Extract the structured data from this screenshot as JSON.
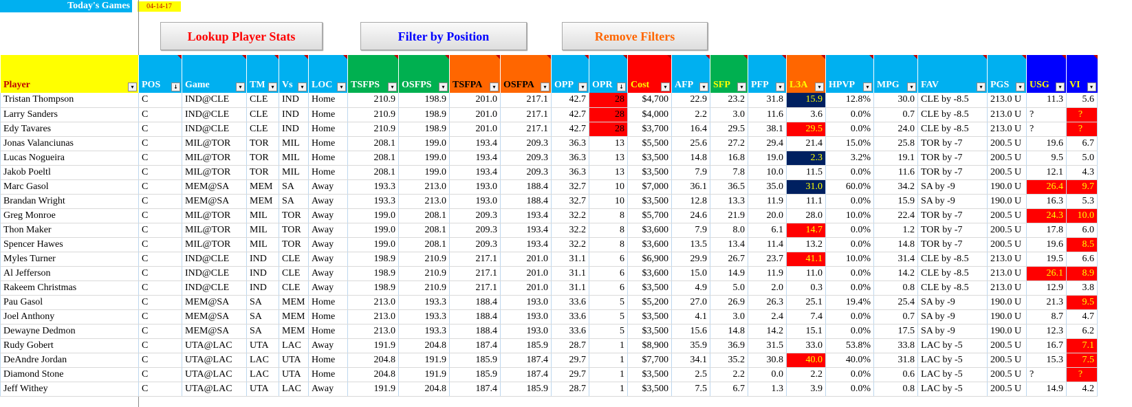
{
  "header": {
    "title": "Today's Games",
    "date": "04-14-17"
  },
  "toolbar": {
    "lookup_label": "Lookup Player Stats",
    "filter_label": "Filter by Position",
    "remove_label": "Remove Filters"
  },
  "colors": {
    "accent_blue": "#00b0f0",
    "yellow": "#ffff00",
    "green": "#00b050",
    "orange": "#ff6600",
    "red": "#ff0000",
    "navy": "#002060",
    "blue": "#0000ff"
  },
  "table": {
    "columns": [
      {
        "label": "Player",
        "bg": "#ffff00",
        "fg": "#c00000",
        "dd": "▾"
      },
      {
        "label": "POS",
        "bg": "#00b0f0",
        "fg": "#ffffff",
        "dd": "↓"
      },
      {
        "label": "Game",
        "bg": "#00b0f0",
        "fg": "#ffffff",
        "dd": "▾"
      },
      {
        "label": "TM",
        "bg": "#00b0f0",
        "fg": "#ffffff",
        "dd": "▾"
      },
      {
        "label": "Vs",
        "bg": "#00b0f0",
        "fg": "#ffffff",
        "dd": "▾"
      },
      {
        "label": "LOC",
        "bg": "#00b0f0",
        "fg": "#ffffff",
        "dd": "▾"
      },
      {
        "label": "TSFPS",
        "bg": "#00b050",
        "fg": "#ffffff",
        "dd": "▾"
      },
      {
        "label": "OSFPS",
        "bg": "#00b050",
        "fg": "#ffffff",
        "dd": "▾"
      },
      {
        "label": "TSFPA",
        "bg": "#ff6600",
        "fg": "#000000",
        "dd": "▾"
      },
      {
        "label": "OSFPA",
        "bg": "#ff6600",
        "fg": "#000000",
        "dd": "▾"
      },
      {
        "label": "OPP",
        "bg": "#00b0f0",
        "fg": "#ffffff",
        "dd": "▾"
      },
      {
        "label": "OPR",
        "bg": "#00b0f0",
        "fg": "#ffffff",
        "dd": "↓"
      },
      {
        "label": "Cost",
        "bg": "#ff0000",
        "fg": "#ffff00",
        "dd": "▾"
      },
      {
        "label": "AFP",
        "bg": "#00b0f0",
        "fg": "#ffffff",
        "dd": "▾"
      },
      {
        "label": "SFP",
        "bg": "#00b050",
        "fg": "#ffff00",
        "dd": "▾"
      },
      {
        "label": "PFP",
        "bg": "#00b0f0",
        "fg": "#ffffff",
        "dd": "▾"
      },
      {
        "label": "L3A",
        "bg": "#ff6600",
        "fg": "#ffff00",
        "dd": "▾"
      },
      {
        "label": "HPVP",
        "bg": "#00b0f0",
        "fg": "#ffffff",
        "dd": "▾"
      },
      {
        "label": "MPG",
        "bg": "#00b0f0",
        "fg": "#ffffff",
        "dd": "▾"
      },
      {
        "label": "FAV",
        "bg": "#00b0f0",
        "fg": "#ffffff",
        "dd": "▾"
      },
      {
        "label": "PGS",
        "bg": "#00b0f0",
        "fg": "#ffffff",
        "dd": "▾"
      },
      {
        "label": "USG",
        "bg": "#0000ff",
        "fg": "#ffff00",
        "dd": "▾"
      },
      {
        "label": "VI",
        "bg": "#0000ff",
        "fg": "#ffff00",
        "dd": "▾"
      }
    ],
    "rows": [
      [
        "Tristan Thompson",
        "C",
        "IND@CLE",
        "CLE",
        "IND",
        "Home",
        "210.9",
        "198.9",
        "201.0",
        "217.1",
        "42.7",
        "28",
        "$4,700",
        "22.9",
        "23.2",
        "31.8",
        "15.9",
        "12.8%",
        "30.0",
        "CLE by -8.5",
        "213.0 U",
        "11.3",
        "5.6"
      ],
      [
        "Larry Sanders",
        "C",
        "IND@CLE",
        "CLE",
        "IND",
        "Home",
        "210.9",
        "198.9",
        "201.0",
        "217.1",
        "42.7",
        "28",
        "$4,000",
        "2.2",
        "3.0",
        "11.6",
        "3.6",
        "0.0%",
        "0.7",
        "CLE by -8.5",
        "213.0 U",
        "?",
        "?"
      ],
      [
        "Edy Tavares",
        "C",
        "IND@CLE",
        "CLE",
        "IND",
        "Home",
        "210.9",
        "198.9",
        "201.0",
        "217.1",
        "42.7",
        "28",
        "$3,700",
        "16.4",
        "29.5",
        "38.1",
        "29.5",
        "0.0%",
        "24.0",
        "CLE by -8.5",
        "213.0 U",
        "?",
        "?"
      ],
      [
        "Jonas Valanciunas",
        "C",
        "MIL@TOR",
        "TOR",
        "MIL",
        "Home",
        "208.1",
        "199.0",
        "193.4",
        "209.3",
        "36.3",
        "13",
        "$5,500",
        "25.6",
        "27.2",
        "29.4",
        "21.4",
        "15.0%",
        "25.8",
        "TOR by -7",
        "200.5 U",
        "19.6",
        "6.7"
      ],
      [
        "Lucas Nogueira",
        "C",
        "MIL@TOR",
        "TOR",
        "MIL",
        "Home",
        "208.1",
        "199.0",
        "193.4",
        "209.3",
        "36.3",
        "13",
        "$3,500",
        "14.8",
        "16.8",
        "19.0",
        "2.3",
        "3.2%",
        "19.1",
        "TOR by -7",
        "200.5 U",
        "9.5",
        "5.0"
      ],
      [
        "Jakob Poeltl",
        "C",
        "MIL@TOR",
        "TOR",
        "MIL",
        "Home",
        "208.1",
        "199.0",
        "193.4",
        "209.3",
        "36.3",
        "13",
        "$3,500",
        "7.9",
        "7.8",
        "10.0",
        "11.5",
        "0.0%",
        "11.6",
        "TOR by -7",
        "200.5 U",
        "12.1",
        "4.3"
      ],
      [
        "Marc Gasol",
        "C",
        "MEM@SA",
        "MEM",
        "SA",
        "Away",
        "193.3",
        "213.0",
        "193.0",
        "188.4",
        "32.7",
        "10",
        "$7,000",
        "36.1",
        "36.5",
        "35.0",
        "31.0",
        "60.0%",
        "34.2",
        "SA by -9",
        "190.0 U",
        "26.4",
        "9.7"
      ],
      [
        "Brandan Wright",
        "C",
        "MEM@SA",
        "MEM",
        "SA",
        "Away",
        "193.3",
        "213.0",
        "193.0",
        "188.4",
        "32.7",
        "10",
        "$3,500",
        "12.8",
        "13.3",
        "11.9",
        "11.1",
        "0.0%",
        "15.9",
        "SA by -9",
        "190.0 U",
        "16.3",
        "5.3"
      ],
      [
        "Greg Monroe",
        "C",
        "MIL@TOR",
        "MIL",
        "TOR",
        "Away",
        "199.0",
        "208.1",
        "209.3",
        "193.4",
        "32.2",
        "8",
        "$5,700",
        "24.6",
        "21.9",
        "20.0",
        "28.0",
        "10.0%",
        "22.4",
        "TOR by -7",
        "200.5 U",
        "24.3",
        "10.0"
      ],
      [
        "Thon Maker",
        "C",
        "MIL@TOR",
        "MIL",
        "TOR",
        "Away",
        "199.0",
        "208.1",
        "209.3",
        "193.4",
        "32.2",
        "8",
        "$3,600",
        "7.9",
        "8.0",
        "6.1",
        "14.7",
        "0.0%",
        "1.2",
        "TOR by -7",
        "200.5 U",
        "17.8",
        "6.0"
      ],
      [
        "Spencer Hawes",
        "C",
        "MIL@TOR",
        "MIL",
        "TOR",
        "Away",
        "199.0",
        "208.1",
        "209.3",
        "193.4",
        "32.2",
        "8",
        "$3,600",
        "13.5",
        "13.4",
        "11.4",
        "13.2",
        "0.0%",
        "14.8",
        "TOR by -7",
        "200.5 U",
        "19.6",
        "8.5"
      ],
      [
        "Myles Turner",
        "C",
        "IND@CLE",
        "IND",
        "CLE",
        "Away",
        "198.9",
        "210.9",
        "217.1",
        "201.0",
        "31.1",
        "6",
        "$6,900",
        "29.9",
        "26.7",
        "23.7",
        "41.1",
        "10.0%",
        "31.4",
        "CLE by -8.5",
        "213.0 U",
        "19.5",
        "6.6"
      ],
      [
        "Al Jefferson",
        "C",
        "IND@CLE",
        "IND",
        "CLE",
        "Away",
        "198.9",
        "210.9",
        "217.1",
        "201.0",
        "31.1",
        "6",
        "$3,600",
        "15.0",
        "14.9",
        "11.9",
        "11.0",
        "0.0%",
        "14.2",
        "CLE by -8.5",
        "213.0 U",
        "26.1",
        "8.9"
      ],
      [
        "Rakeem Christmas",
        "C",
        "IND@CLE",
        "IND",
        "CLE",
        "Away",
        "198.9",
        "210.9",
        "217.1",
        "201.0",
        "31.1",
        "6",
        "$3,500",
        "4.9",
        "5.0",
        "2.0",
        "0.3",
        "0.0%",
        "0.8",
        "CLE by -8.5",
        "213.0 U",
        "12.9",
        "3.8"
      ],
      [
        "Pau Gasol",
        "C",
        "MEM@SA",
        "SA",
        "MEM",
        "Home",
        "213.0",
        "193.3",
        "188.4",
        "193.0",
        "33.6",
        "5",
        "$5,200",
        "27.0",
        "26.9",
        "26.3",
        "25.1",
        "19.4%",
        "25.4",
        "SA by -9",
        "190.0 U",
        "21.3",
        "9.5"
      ],
      [
        "Joel Anthony",
        "C",
        "MEM@SA",
        "SA",
        "MEM",
        "Home",
        "213.0",
        "193.3",
        "188.4",
        "193.0",
        "33.6",
        "5",
        "$3,500",
        "4.1",
        "3.0",
        "2.4",
        "7.4",
        "0.0%",
        "0.7",
        "SA by -9",
        "190.0 U",
        "8.7",
        "4.7"
      ],
      [
        "Dewayne Dedmon",
        "C",
        "MEM@SA",
        "SA",
        "MEM",
        "Home",
        "213.0",
        "193.3",
        "188.4",
        "193.0",
        "33.6",
        "5",
        "$3,500",
        "15.6",
        "14.8",
        "14.2",
        "15.1",
        "0.0%",
        "17.5",
        "SA by -9",
        "190.0 U",
        "12.3",
        "6.2"
      ],
      [
        "Rudy Gobert",
        "C",
        "UTA@LAC",
        "UTA",
        "LAC",
        "Away",
        "191.9",
        "204.8",
        "187.4",
        "185.9",
        "28.7",
        "1",
        "$8,900",
        "35.9",
        "36.9",
        "31.5",
        "33.0",
        "53.8%",
        "33.8",
        "LAC by -5",
        "200.5 U",
        "16.7",
        "7.1"
      ],
      [
        "DeAndre Jordan",
        "C",
        "UTA@LAC",
        "LAC",
        "UTA",
        "Home",
        "204.8",
        "191.9",
        "185.9",
        "187.4",
        "29.7",
        "1",
        "$7,700",
        "34.1",
        "35.2",
        "30.8",
        "40.0",
        "40.0%",
        "31.8",
        "LAC by -5",
        "200.5 U",
        "15.3",
        "7.5"
      ],
      [
        "Diamond Stone",
        "C",
        "UTA@LAC",
        "LAC",
        "UTA",
        "Home",
        "204.8",
        "191.9",
        "185.9",
        "187.4",
        "29.7",
        "1",
        "$3,500",
        "2.5",
        "2.2",
        "0.0",
        "2.2",
        "0.0%",
        "0.6",
        "LAC by -5",
        "200.5 U",
        "?",
        "?"
      ],
      [
        "Jeff Withey",
        "C",
        "UTA@LAC",
        "UTA",
        "LAC",
        "Away",
        "191.9",
        "204.8",
        "187.4",
        "185.9",
        "28.7",
        "1",
        "$3,500",
        "7.5",
        "6.7",
        "1.3",
        "3.9",
        "0.0%",
        "0.8",
        "LAC by -5",
        "200.5 U",
        "14.9",
        "4.2"
      ]
    ]
  }
}
